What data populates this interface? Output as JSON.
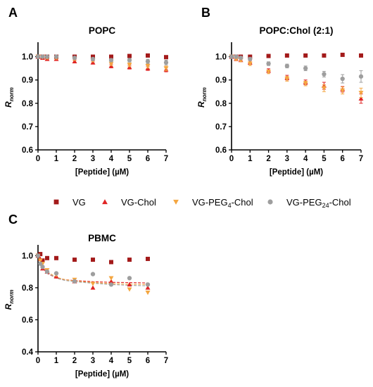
{
  "legend": {
    "entries": [
      {
        "name": "VG",
        "name_sub": "",
        "name_suffix": "",
        "marker": "square",
        "color": "#a31a1a"
      },
      {
        "name": "VG-Chol",
        "name_sub": "",
        "name_suffix": "",
        "marker": "triangle-up",
        "color": "#e02424"
      },
      {
        "name": "VG-PEG",
        "name_sub": "4",
        "name_suffix": "-Chol",
        "marker": "triangle-down",
        "color": "#f4a640"
      },
      {
        "name": "VG-PEG",
        "name_sub": "24",
        "name_suffix": "-Chol",
        "marker": "circle",
        "color": "#9e9e9e"
      }
    ]
  },
  "chart_data": [
    {
      "panel": "A",
      "type": "scatter",
      "title": "POPC",
      "xlabel": "[Peptide] (µM)",
      "ylabel": "R",
      "ylabel_sub": "norm",
      "xlim": [
        0,
        7
      ],
      "ylim": [
        0.6,
        1.05
      ],
      "xticks": [
        0,
        1,
        2,
        3,
        4,
        5,
        6,
        7
      ],
      "yticks": [
        0.6,
        0.7,
        0.8,
        0.9,
        1.0
      ],
      "ytick_labels": [
        "0.6",
        "0.7",
        "0.8",
        "0.9",
        "1.0"
      ],
      "series": [
        {
          "marker": "square",
          "color": "#a31a1a",
          "x": [
            0,
            0.25,
            0.5,
            1,
            2,
            3,
            4,
            5,
            6,
            7
          ],
          "y": [
            1.0,
            1.0,
            1.0,
            1.0,
            1.0,
            1.0,
            1.0,
            1.003,
            1.005,
            0.998
          ],
          "err": [
            0.004,
            0.004,
            0.004,
            0.004,
            0.004,
            0.004,
            0.004,
            0.004,
            0.004,
            0.004
          ]
        },
        {
          "marker": "triangle-up",
          "color": "#e02424",
          "x": [
            0,
            0.25,
            0.5,
            1,
            2,
            3,
            4,
            5,
            6,
            7
          ],
          "y": [
            1.0,
            0.995,
            0.99,
            0.99,
            0.98,
            0.975,
            0.96,
            0.955,
            0.95,
            0.945
          ],
          "err": [
            0.004,
            0.004,
            0.004,
            0.005,
            0.006,
            0.007,
            0.008,
            0.008,
            0.009,
            0.01
          ]
        },
        {
          "marker": "triangle-down",
          "color": "#f4a640",
          "x": [
            0,
            0.25,
            0.5,
            1,
            2,
            3,
            4,
            5,
            6,
            7
          ],
          "y": [
            1.0,
            0.998,
            0.995,
            0.995,
            0.99,
            0.985,
            0.97,
            0.965,
            0.96,
            0.95
          ],
          "err": [
            0.004,
            0.004,
            0.004,
            0.005,
            0.006,
            0.007,
            0.008,
            0.008,
            0.009,
            0.01
          ]
        },
        {
          "marker": "circle",
          "color": "#9e9e9e",
          "x": [
            0,
            0.25,
            0.5,
            1,
            2,
            3,
            4,
            5,
            6,
            7
          ],
          "y": [
            1.0,
            1.0,
            1.0,
            1.0,
            0.995,
            0.99,
            0.985,
            0.985,
            0.98,
            0.975
          ],
          "err": [
            0.004,
            0.004,
            0.004,
            0.004,
            0.005,
            0.006,
            0.007,
            0.008,
            0.009,
            0.01
          ]
        }
      ],
      "fits": []
    },
    {
      "panel": "B",
      "type": "scatter",
      "title": "POPC:Chol (2:1)",
      "xlabel": "[Peptide] (µM)",
      "ylabel": "R",
      "ylabel_sub": "norm",
      "xlim": [
        0,
        7
      ],
      "ylim": [
        0.6,
        1.05
      ],
      "xticks": [
        0,
        1,
        2,
        3,
        4,
        5,
        6,
        7
      ],
      "yticks": [
        0.6,
        0.7,
        0.8,
        0.9,
        1.0
      ],
      "ytick_labels": [
        "0.6",
        "0.7",
        "0.8",
        "0.9",
        "1.0"
      ],
      "series": [
        {
          "marker": "square",
          "color": "#a31a1a",
          "x": [
            0,
            0.25,
            0.5,
            1,
            2,
            3,
            4,
            5,
            6,
            7
          ],
          "y": [
            1.0,
            1.0,
            1.0,
            1.0,
            1.003,
            1.005,
            1.005,
            1.005,
            1.008,
            1.005
          ],
          "err": [
            0.004,
            0.004,
            0.004,
            0.004,
            0.004,
            0.005,
            0.005,
            0.005,
            0.006,
            0.006
          ]
        },
        {
          "marker": "triangle-up",
          "color": "#e02424",
          "x": [
            0,
            0.25,
            0.5,
            1,
            2,
            3,
            4,
            5,
            6,
            7
          ],
          "y": [
            1.0,
            0.99,
            0.985,
            0.975,
            0.94,
            0.91,
            0.89,
            0.875,
            0.86,
            0.82
          ],
          "err": [
            0.005,
            0.005,
            0.006,
            0.008,
            0.008,
            0.01,
            0.01,
            0.015,
            0.012,
            0.02
          ]
        },
        {
          "marker": "triangle-down",
          "color": "#f4a640",
          "x": [
            0,
            0.25,
            0.5,
            1,
            2,
            3,
            4,
            5,
            6,
            7
          ],
          "y": [
            1.0,
            0.99,
            0.985,
            0.97,
            0.935,
            0.905,
            0.885,
            0.865,
            0.855,
            0.845
          ],
          "err": [
            0.005,
            0.005,
            0.006,
            0.008,
            0.008,
            0.01,
            0.01,
            0.015,
            0.015,
            0.02
          ]
        },
        {
          "marker": "circle",
          "color": "#9e9e9e",
          "x": [
            0,
            0.25,
            0.5,
            1,
            2,
            3,
            4,
            5,
            6,
            7
          ],
          "y": [
            1.0,
            1.0,
            0.995,
            0.99,
            0.97,
            0.96,
            0.95,
            0.925,
            0.905,
            0.915
          ],
          "err": [
            0.004,
            0.004,
            0.005,
            0.006,
            0.008,
            0.008,
            0.01,
            0.012,
            0.018,
            0.025
          ]
        }
      ],
      "fits": []
    },
    {
      "panel": "C",
      "type": "scatter",
      "title": "PBMC",
      "xlabel": "[Peptide] (µM)",
      "ylabel": "R",
      "ylabel_sub": "norm",
      "xlim": [
        0,
        7
      ],
      "ylim": [
        0.4,
        1.05
      ],
      "xticks": [
        0,
        1,
        2,
        3,
        4,
        5,
        6,
        7
      ],
      "yticks": [
        0.4,
        0.6,
        0.8,
        1.0
      ],
      "ytick_labels": [
        "0.4",
        "0.6",
        "0.8",
        "1.0"
      ],
      "series": [
        {
          "marker": "square",
          "color": "#a31a1a",
          "x": [
            0,
            0.125,
            0.25,
            0.5,
            1,
            2,
            3,
            4,
            5,
            6
          ],
          "y": [
            1.0,
            1.01,
            0.97,
            0.985,
            0.985,
            0.975,
            0.975,
            0.96,
            0.975,
            0.98
          ],
          "err": [
            0,
            0,
            0,
            0,
            0,
            0,
            0,
            0,
            0,
            0
          ]
        },
        {
          "marker": "triangle-up",
          "color": "#e02424",
          "x": [
            0,
            0.125,
            0.25,
            0.5,
            1,
            2,
            3,
            4,
            5,
            6
          ],
          "y": [
            1.0,
            0.98,
            0.92,
            0.9,
            0.87,
            0.84,
            0.8,
            0.84,
            0.82,
            0.8
          ],
          "err": [
            0,
            0,
            0,
            0,
            0,
            0,
            0,
            0,
            0,
            0
          ]
        },
        {
          "marker": "triangle-down",
          "color": "#f4a640",
          "x": [
            0,
            0.125,
            0.25,
            0.5,
            1,
            2,
            3,
            4,
            5,
            6
          ],
          "y": [
            1.0,
            0.97,
            0.95,
            0.91,
            0.88,
            0.85,
            0.825,
            0.86,
            0.79,
            0.77
          ],
          "err": [
            0,
            0,
            0,
            0,
            0,
            0,
            0,
            0,
            0,
            0
          ]
        },
        {
          "marker": "circle",
          "color": "#9e9e9e",
          "x": [
            0,
            0.125,
            0.25,
            0.5,
            1,
            2,
            3,
            4,
            5,
            6
          ],
          "y": [
            1.0,
            0.95,
            0.93,
            0.9,
            0.89,
            0.84,
            0.885,
            0.82,
            0.86,
            0.82
          ],
          "err": [
            0,
            0,
            0,
            0,
            0,
            0,
            0,
            0,
            0,
            0
          ]
        }
      ],
      "fits": [
        {
          "color": "#e02424",
          "x": [
            0.05,
            0.25,
            0.5,
            1,
            1.5,
            2,
            3,
            4,
            5,
            6
          ],
          "y": [
            0.985,
            0.925,
            0.89,
            0.86,
            0.85,
            0.845,
            0.838,
            0.834,
            0.832,
            0.83
          ]
        },
        {
          "color": "#f4a640",
          "x": [
            0.05,
            0.25,
            0.5,
            1,
            1.5,
            2,
            3,
            4,
            5,
            6
          ],
          "y": [
            0.99,
            0.935,
            0.9,
            0.865,
            0.85,
            0.842,
            0.832,
            0.826,
            0.822,
            0.82
          ]
        },
        {
          "color": "#9e9e9e",
          "x": [
            0.05,
            0.25,
            0.5,
            1,
            1.5,
            2,
            3,
            4,
            5,
            6
          ],
          "y": [
            0.985,
            0.93,
            0.895,
            0.86,
            0.845,
            0.838,
            0.828,
            0.82,
            0.815,
            0.812
          ]
        }
      ]
    }
  ]
}
